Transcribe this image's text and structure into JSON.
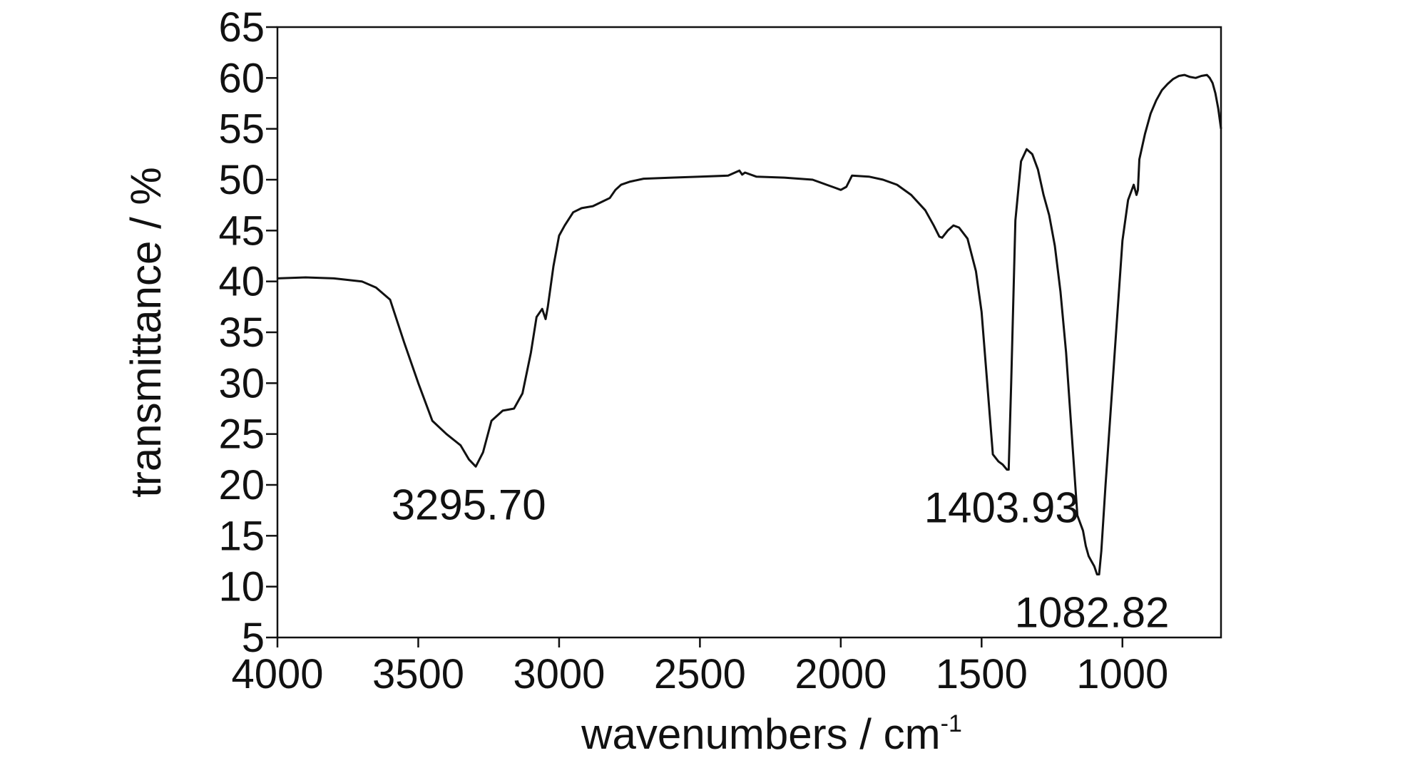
{
  "chart_data": {
    "type": "line",
    "title": "",
    "xlabel_main": "wavenumbers / cm",
    "xlabel_sup": "-1",
    "ylabel": "transmittance / %",
    "xlim": [
      4000,
      650
    ],
    "ylim": [
      5,
      65
    ],
    "x_reversed": true,
    "grid": false,
    "legend": "none",
    "line_color": "#111111",
    "x_ticks": [
      4000,
      3500,
      3000,
      2500,
      2000,
      1500,
      1000
    ],
    "x_tick_labels": [
      "4000",
      "3500",
      "3000",
      "2500",
      "2000",
      "1500",
      "1000"
    ],
    "y_ticks": [
      5,
      10,
      15,
      20,
      25,
      30,
      35,
      40,
      45,
      50,
      55,
      60,
      65
    ],
    "y_tick_labels": [
      "5",
      "10",
      "15",
      "20",
      "25",
      "30",
      "35",
      "40",
      "45",
      "50",
      "55",
      "60",
      "65"
    ],
    "annotations": [
      {
        "text": "3295.70",
        "x": 3295.7,
        "y": 21.8
      },
      {
        "text": "1403.93",
        "x": 1403.93,
        "y": 21.5
      },
      {
        "text": "1082.82",
        "x": 1082.82,
        "y": 11.2
      }
    ],
    "series": [
      {
        "x": [
          4000,
          3900,
          3800,
          3700,
          3650,
          3600,
          3550,
          3500,
          3450,
          3400,
          3350,
          3320,
          3295.7,
          3270,
          3240,
          3200,
          3160,
          3130,
          3100,
          3080,
          3060,
          3048,
          3040,
          3020,
          3000,
          2980,
          2950,
          2920,
          2880,
          2850,
          2820,
          2800,
          2780,
          2750,
          2700,
          2600,
          2500,
          2400,
          2360,
          2350,
          2340,
          2300,
          2200,
          2100,
          2050,
          2020,
          2000,
          1980,
          1960,
          1900,
          1850,
          1800,
          1750,
          1700,
          1670,
          1650,
          1640,
          1620,
          1600,
          1580,
          1550,
          1520,
          1500,
          1480,
          1460,
          1440,
          1425,
          1410,
          1403.93,
          1395,
          1380,
          1360,
          1340,
          1320,
          1300,
          1280,
          1260,
          1240,
          1220,
          1200,
          1180,
          1160,
          1140,
          1130,
          1120,
          1110,
          1100,
          1090,
          1082.82,
          1075,
          1060,
          1040,
          1020,
          1000,
          980,
          960,
          950,
          945,
          940,
          920,
          900,
          880,
          860,
          840,
          820,
          800,
          780,
          760,
          740,
          720,
          700,
          690,
          680,
          670,
          660,
          650
        ],
        "y": [
          40.3,
          40.4,
          40.3,
          40.0,
          39.4,
          38.2,
          34.0,
          30.0,
          26.3,
          25.0,
          23.9,
          22.5,
          21.8,
          23.2,
          26.3,
          27.3,
          27.5,
          29.0,
          33.0,
          36.5,
          37.3,
          36.3,
          37.5,
          41.5,
          44.5,
          45.5,
          46.8,
          47.2,
          47.4,
          47.8,
          48.2,
          49.0,
          49.5,
          49.8,
          50.1,
          50.2,
          50.3,
          50.4,
          50.9,
          50.5,
          50.7,
          50.3,
          50.2,
          50.0,
          49.5,
          49.2,
          49.0,
          49.3,
          50.4,
          50.3,
          50.0,
          49.5,
          48.5,
          47.0,
          45.5,
          44.4,
          44.3,
          45.0,
          45.5,
          45.3,
          44.2,
          41.0,
          37.0,
          30.0,
          23.0,
          22.3,
          22.0,
          21.5,
          21.5,
          30.0,
          46.0,
          51.8,
          53.0,
          52.5,
          51.0,
          48.5,
          46.5,
          43.5,
          39.0,
          33.0,
          25.0,
          17.0,
          15.5,
          14.0,
          13.0,
          12.5,
          12.0,
          11.2,
          11.2,
          13.5,
          20.0,
          28.0,
          36.0,
          44.0,
          48.0,
          49.5,
          48.5,
          49.0,
          52.0,
          54.5,
          56.5,
          57.8,
          58.8,
          59.4,
          59.9,
          60.2,
          60.3,
          60.1,
          60.0,
          60.2,
          60.3,
          60.0,
          59.5,
          58.5,
          57.0,
          55.0
        ]
      }
    ]
  }
}
